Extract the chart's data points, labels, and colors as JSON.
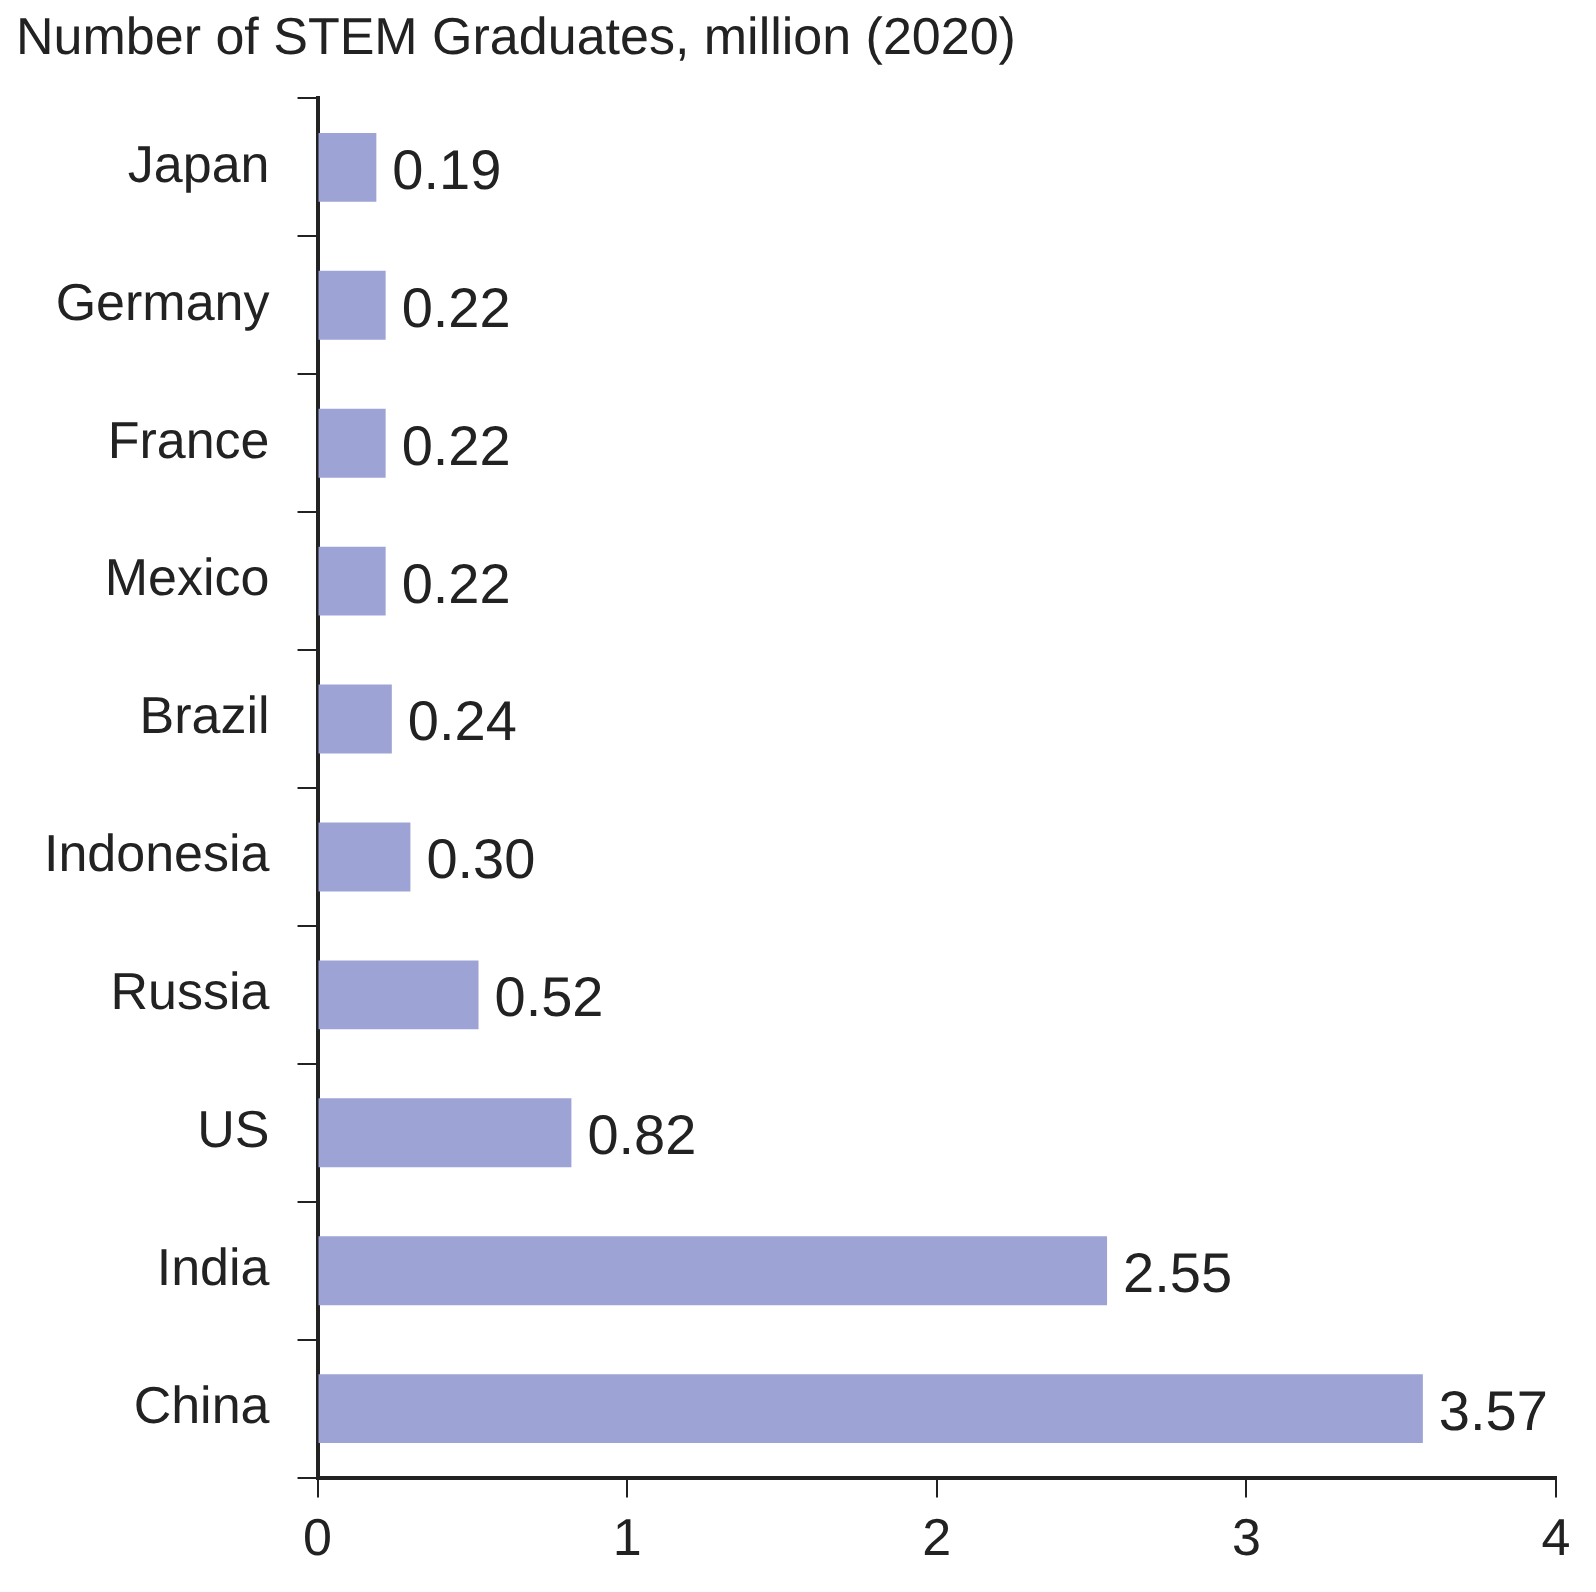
{
  "chart_data": {
    "type": "bar",
    "orientation": "horizontal",
    "title": "Number of STEM Graduates, million (2020)",
    "categories": [
      "Japan",
      "Germany",
      "France",
      "Mexico",
      "Brazil",
      "Indonesia",
      "Russia",
      "US",
      "India",
      "China"
    ],
    "values": [
      0.19,
      0.22,
      0.22,
      0.22,
      0.24,
      0.3,
      0.52,
      0.82,
      2.55,
      3.57
    ],
    "value_labels": [
      "0.19",
      "0.22",
      "0.22",
      "0.22",
      "0.24",
      "0.30",
      "0.52",
      "0.82",
      "2.55",
      "3.57"
    ],
    "color": "#9ea3d5",
    "xlim": [
      0,
      4
    ],
    "xticks": [
      0,
      1,
      2,
      3,
      4
    ],
    "grid": false,
    "legend": false
  }
}
